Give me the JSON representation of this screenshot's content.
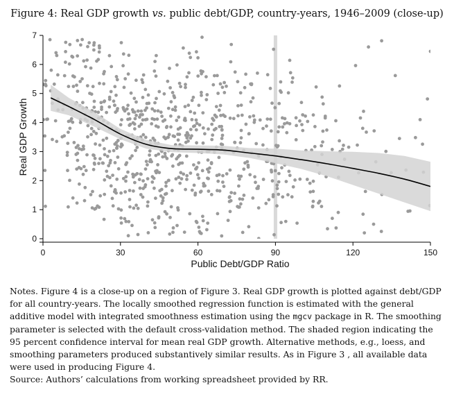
{
  "figure": {
    "title_pre": "Figure 4:  Real GDP growth ",
    "title_vs": "vs.",
    "title_post": " public debt/GDP, country-years, 1946–2009 (close-up)"
  },
  "notes": {
    "text1": "Notes. Figure 4 is a close-up on a region of Figure 3. Real GDP growth is plotted against debt/GDP for all country-years. The locally smoothed regression function is estimated with the general additive model with integrated smoothness estimation using the ",
    "code": "mgcv",
    "text2": " package in R. The smoothing parameter is selected with the default cross-validation method. The shaded region indicating the 95 percent confidence interval for mean real GDP growth. Alternative methods, e.g., loess, and smoothing parameters produced substantively similar results. As in Figure 3 , all available data were used in producing Figure 4.",
    "source": "Source: Authors’ calculations from working spreadsheet provided by RR."
  },
  "chart_data": {
    "type": "scatter",
    "title": "Real GDP growth vs. public debt/GDP, country-years, 1946–2009 (close-up)",
    "xlabel": "Public Debt/GDP Ratio",
    "ylabel": "Real GDP Growth",
    "xlim": [
      0,
      150
    ],
    "ylim": [
      0,
      7
    ],
    "xticks": [
      0,
      30,
      60,
      90,
      120,
      150
    ],
    "yticks": [
      0,
      1,
      2,
      3,
      4,
      5,
      6,
      7
    ],
    "reference_line_x": 90,
    "point_color": "#9a9a9a",
    "band_color": "#d3d3d3",
    "line_color": "#000000",
    "smooth_fit": {
      "x": [
        3,
        10,
        20,
        30,
        40,
        50,
        60,
        70,
        80,
        90,
        100,
        110,
        120,
        130,
        140,
        150
      ],
      "y": [
        4.85,
        4.55,
        4.1,
        3.6,
        3.25,
        3.1,
        3.08,
        3.05,
        2.95,
        2.85,
        2.72,
        2.58,
        2.42,
        2.25,
        2.05,
        1.8
      ],
      "ci_lower": [
        4.4,
        4.25,
        3.85,
        3.42,
        3.1,
        2.98,
        2.95,
        2.9,
        2.78,
        2.6,
        2.4,
        2.15,
        1.85,
        1.55,
        1.25,
        0.95
      ],
      "ci_upper": [
        5.3,
        4.85,
        4.35,
        3.78,
        3.4,
        3.22,
        3.21,
        3.2,
        3.12,
        3.1,
        3.04,
        3.01,
        2.99,
        2.95,
        2.85,
        2.65
      ]
    },
    "scatter": {
      "n_points": 900,
      "seed": 12345,
      "x_density": [
        [
          0,
          8,
          30
        ],
        [
          8,
          20,
          110
        ],
        [
          20,
          35,
          150
        ],
        [
          35,
          50,
          160
        ],
        [
          50,
          65,
          150
        ],
        [
          65,
          80,
          110
        ],
        [
          80,
          95,
          80
        ],
        [
          95,
          110,
          55
        ],
        [
          110,
          125,
          25
        ],
        [
          125,
          150,
          20
        ]
      ],
      "outliers": [
        [
          126,
          6.6
        ],
        [
          150,
          6.45
        ],
        [
          146,
          4.1
        ],
        [
          138,
          3.45
        ],
        [
          115,
          3.0
        ],
        [
          128,
          0.5
        ],
        [
          131,
          0.25
        ],
        [
          104,
          3.05
        ],
        [
          108,
          2.9
        ],
        [
          92,
          5.4
        ],
        [
          91,
          3.2
        ],
        [
          112,
          0.7
        ]
      ]
    }
  }
}
